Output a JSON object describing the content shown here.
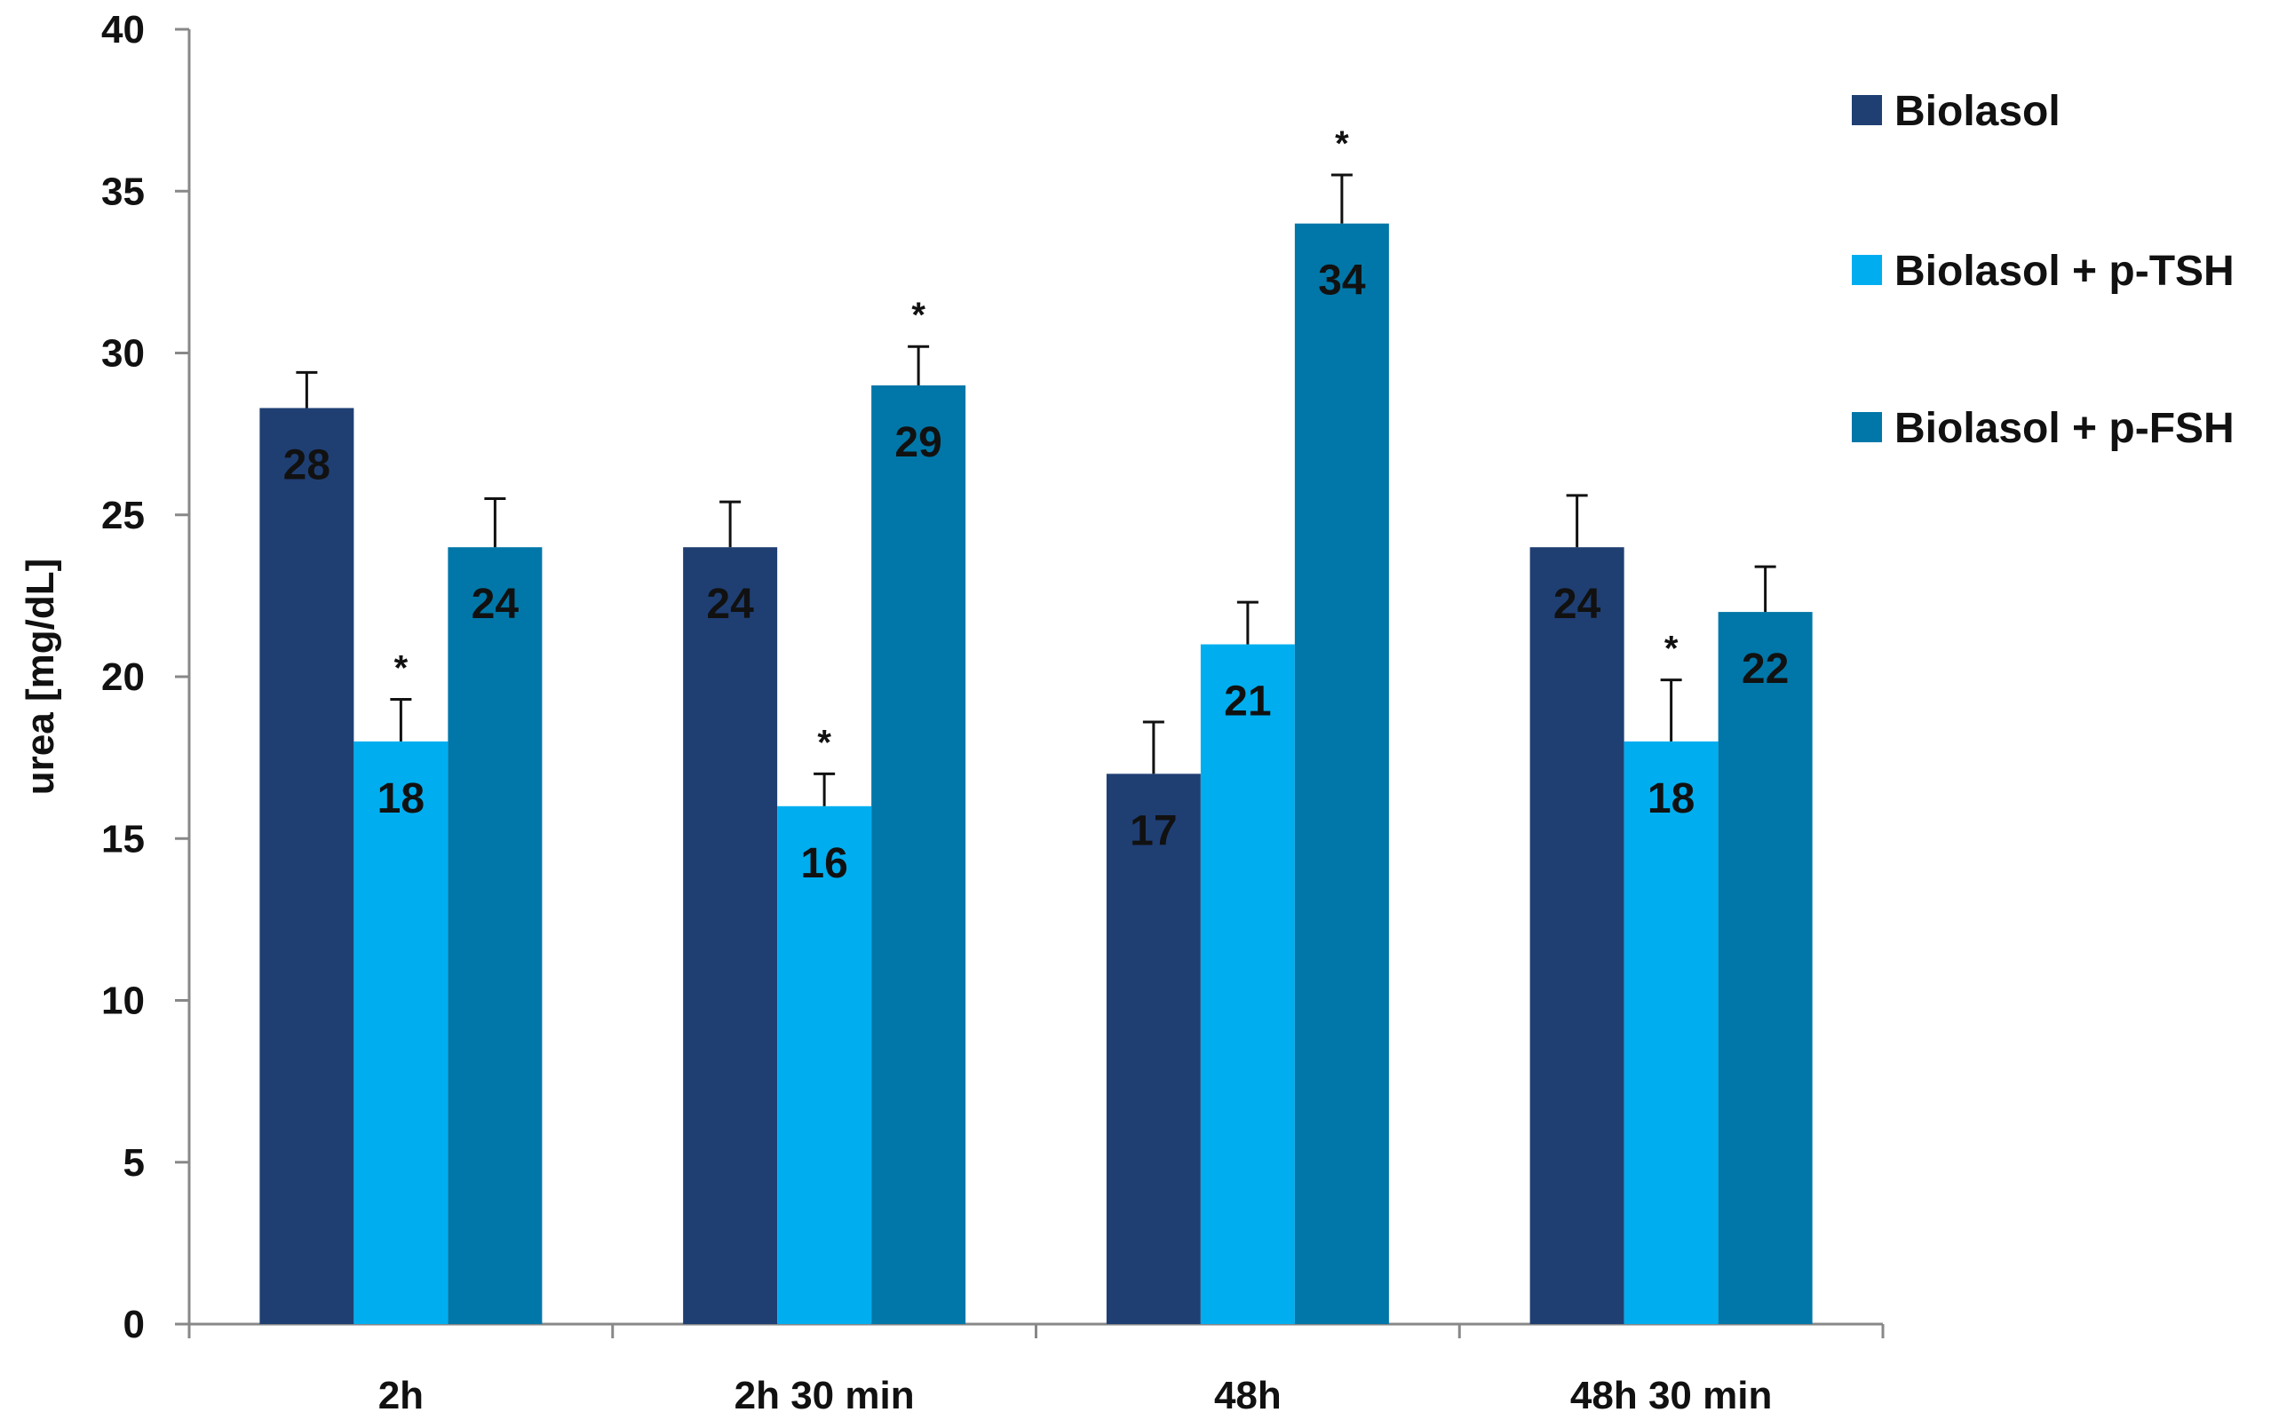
{
  "chart_data": {
    "type": "bar",
    "title": "",
    "xlabel": "",
    "ylabel": "urea [mg/dL]",
    "ylim": [
      0,
      40
    ],
    "yticks": [
      0,
      5,
      10,
      15,
      20,
      25,
      30,
      35,
      40
    ],
    "grid": false,
    "legend_position": "right",
    "categories": [
      "2h",
      "2h 30 min",
      "48h",
      "48h 30 min"
    ],
    "series": [
      {
        "name": "Biolasol",
        "color": "#1F3F73",
        "values": [
          28.3,
          24,
          17,
          24
        ],
        "data_labels": [
          "28",
          "24",
          "17",
          "24"
        ],
        "errors": [
          1.1,
          1.4,
          1.6,
          1.6
        ],
        "significance": [
          "",
          "",
          "",
          ""
        ]
      },
      {
        "name": "Biolasol + p-TSH",
        "color": "#00AEEF",
        "values": [
          18,
          16,
          21,
          18
        ],
        "data_labels": [
          "18",
          "16",
          "21",
          "18"
        ],
        "errors": [
          1.3,
          1.0,
          1.3,
          1.9
        ],
        "significance": [
          "*",
          "*",
          "",
          "*"
        ]
      },
      {
        "name": "Biolasol + p-FSH",
        "color": "#0077A8",
        "values": [
          24,
          29,
          34,
          22
        ],
        "data_labels": [
          "24",
          "29",
          "34",
          "22"
        ],
        "errors": [
          1.5,
          1.2,
          1.5,
          1.4
        ],
        "significance": [
          "",
          "*",
          "*",
          ""
        ]
      }
    ]
  }
}
